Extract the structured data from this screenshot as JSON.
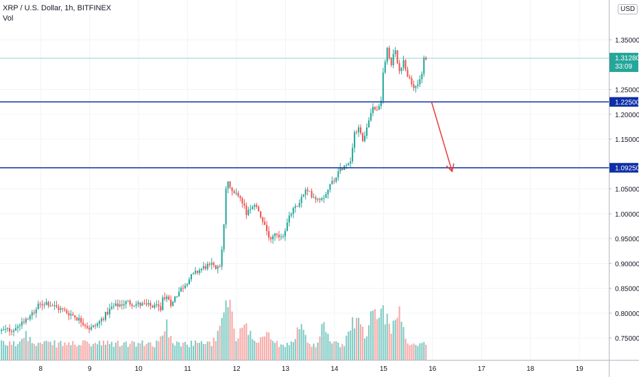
{
  "header": {
    "symbol_line": "XRP / U.S. Dollar, 1h, BITFINEX",
    "volume_label": "Vol",
    "currency": "USD"
  },
  "colors": {
    "up": "#26a69a",
    "down": "#ef5350",
    "vol_up": "#80cbc4",
    "vol_down": "#f7a9a7",
    "level_line": "#0d2ea6",
    "arrow": "#e53935",
    "price_line": "#26a69a",
    "grid": "#f0f3fa"
  },
  "chart_data": {
    "type": "candlestick",
    "x_tick_labels": [
      "8",
      "9",
      "10",
      "11",
      "12",
      "13",
      "14",
      "15",
      "16",
      "17",
      "18",
      "19"
    ],
    "y_tick_labels": [
      "1.35000",
      "1.25000",
      "1.20000",
      "1.15000",
      "1.05000",
      "1.00000",
      "0.95000",
      "0.90000",
      "0.85000",
      "0.80000",
      "0.75000"
    ],
    "ylim": [
      0.706,
      1.43
    ],
    "xlim": [
      7.17,
      19.6
    ],
    "x_ticks": [
      8,
      9,
      10,
      11,
      12,
      13,
      14,
      15,
      16,
      17,
      18,
      19
    ],
    "y_ticks": [
      1.35,
      1.25,
      1.2,
      1.15,
      1.05,
      1.0,
      0.95,
      0.9,
      0.85,
      0.8,
      0.75
    ],
    "levels": [
      {
        "price": 1.225,
        "label": "1.22500"
      },
      {
        "price": 1.0925,
        "label": "1.09250"
      }
    ],
    "last_price": {
      "price": 1.3128,
      "label": "1.31280",
      "countdown": "33:09"
    },
    "arrow": {
      "from": {
        "x": 15.98,
        "y": 1.225
      },
      "to": {
        "x": 16.4,
        "y": 1.085
      }
    },
    "series": [
      {
        "name": "price",
        "waypoints": [
          [
            7.2,
            0.764
          ],
          [
            7.5,
            0.768
          ],
          [
            7.8,
            0.795
          ],
          [
            8.0,
            0.815
          ],
          [
            8.15,
            0.822
          ],
          [
            8.4,
            0.81
          ],
          [
            8.7,
            0.796
          ],
          [
            8.9,
            0.782
          ],
          [
            9.05,
            0.768
          ],
          [
            9.2,
            0.778
          ],
          [
            9.5,
            0.812
          ],
          [
            9.8,
            0.822
          ],
          [
            10.0,
            0.818
          ],
          [
            10.3,
            0.814
          ],
          [
            10.5,
            0.81
          ],
          [
            10.55,
            0.835
          ],
          [
            10.7,
            0.82
          ],
          [
            10.9,
            0.848
          ],
          [
            11.1,
            0.872
          ],
          [
            11.3,
            0.888
          ],
          [
            11.5,
            0.898
          ],
          [
            11.65,
            0.89
          ],
          [
            11.72,
            0.9
          ],
          [
            11.78,
            0.97
          ],
          [
            11.84,
            1.07
          ],
          [
            11.95,
            1.045
          ],
          [
            12.05,
            1.04
          ],
          [
            12.15,
            1.025
          ],
          [
            12.25,
            1.0
          ],
          [
            12.35,
            1.01
          ],
          [
            12.45,
            1.015
          ],
          [
            12.55,
            0.985
          ],
          [
            12.65,
            0.965
          ],
          [
            12.72,
            0.95
          ],
          [
            12.82,
            0.96
          ],
          [
            12.92,
            0.955
          ],
          [
            13.0,
            0.96
          ],
          [
            13.15,
            1.0
          ],
          [
            13.3,
            1.02
          ],
          [
            13.45,
            1.045
          ],
          [
            13.55,
            1.04
          ],
          [
            13.7,
            1.03
          ],
          [
            13.82,
            1.035
          ],
          [
            13.9,
            1.05
          ],
          [
            14.0,
            1.065
          ],
          [
            14.15,
            1.09
          ],
          [
            14.25,
            1.095
          ],
          [
            14.35,
            1.1
          ],
          [
            14.45,
            1.16
          ],
          [
            14.55,
            1.18
          ],
          [
            14.62,
            1.14
          ],
          [
            14.72,
            1.175
          ],
          [
            14.82,
            1.22
          ],
          [
            14.92,
            1.21
          ],
          [
            15.0,
            1.235
          ],
          [
            15.05,
            1.3
          ],
          [
            15.12,
            1.33
          ],
          [
            15.2,
            1.3
          ],
          [
            15.28,
            1.33
          ],
          [
            15.38,
            1.28
          ],
          [
            15.45,
            1.31
          ],
          [
            15.55,
            1.275
          ],
          [
            15.65,
            1.25
          ],
          [
            15.75,
            1.265
          ],
          [
            15.82,
            1.28
          ],
          [
            15.87,
            1.3128
          ]
        ]
      },
      {
        "name": "volume",
        "ylim": [
          0,
          1
        ],
        "peaks": [
          [
            11.82,
            1.0
          ],
          [
            12.15,
            0.62
          ],
          [
            14.5,
            0.68
          ],
          [
            14.95,
            0.82
          ],
          [
            14.8,
            0.78
          ],
          [
            15.3,
            0.75
          ],
          [
            15.05,
            0.6
          ],
          [
            13.3,
            0.52
          ],
          [
            12.6,
            0.45
          ],
          [
            12.3,
            0.35
          ],
          [
            10.55,
            0.55
          ],
          [
            11.65,
            0.5
          ],
          [
            7.7,
            0.42
          ],
          [
            14.35,
            0.6
          ],
          [
            13.8,
            0.55
          ]
        ]
      }
    ]
  }
}
